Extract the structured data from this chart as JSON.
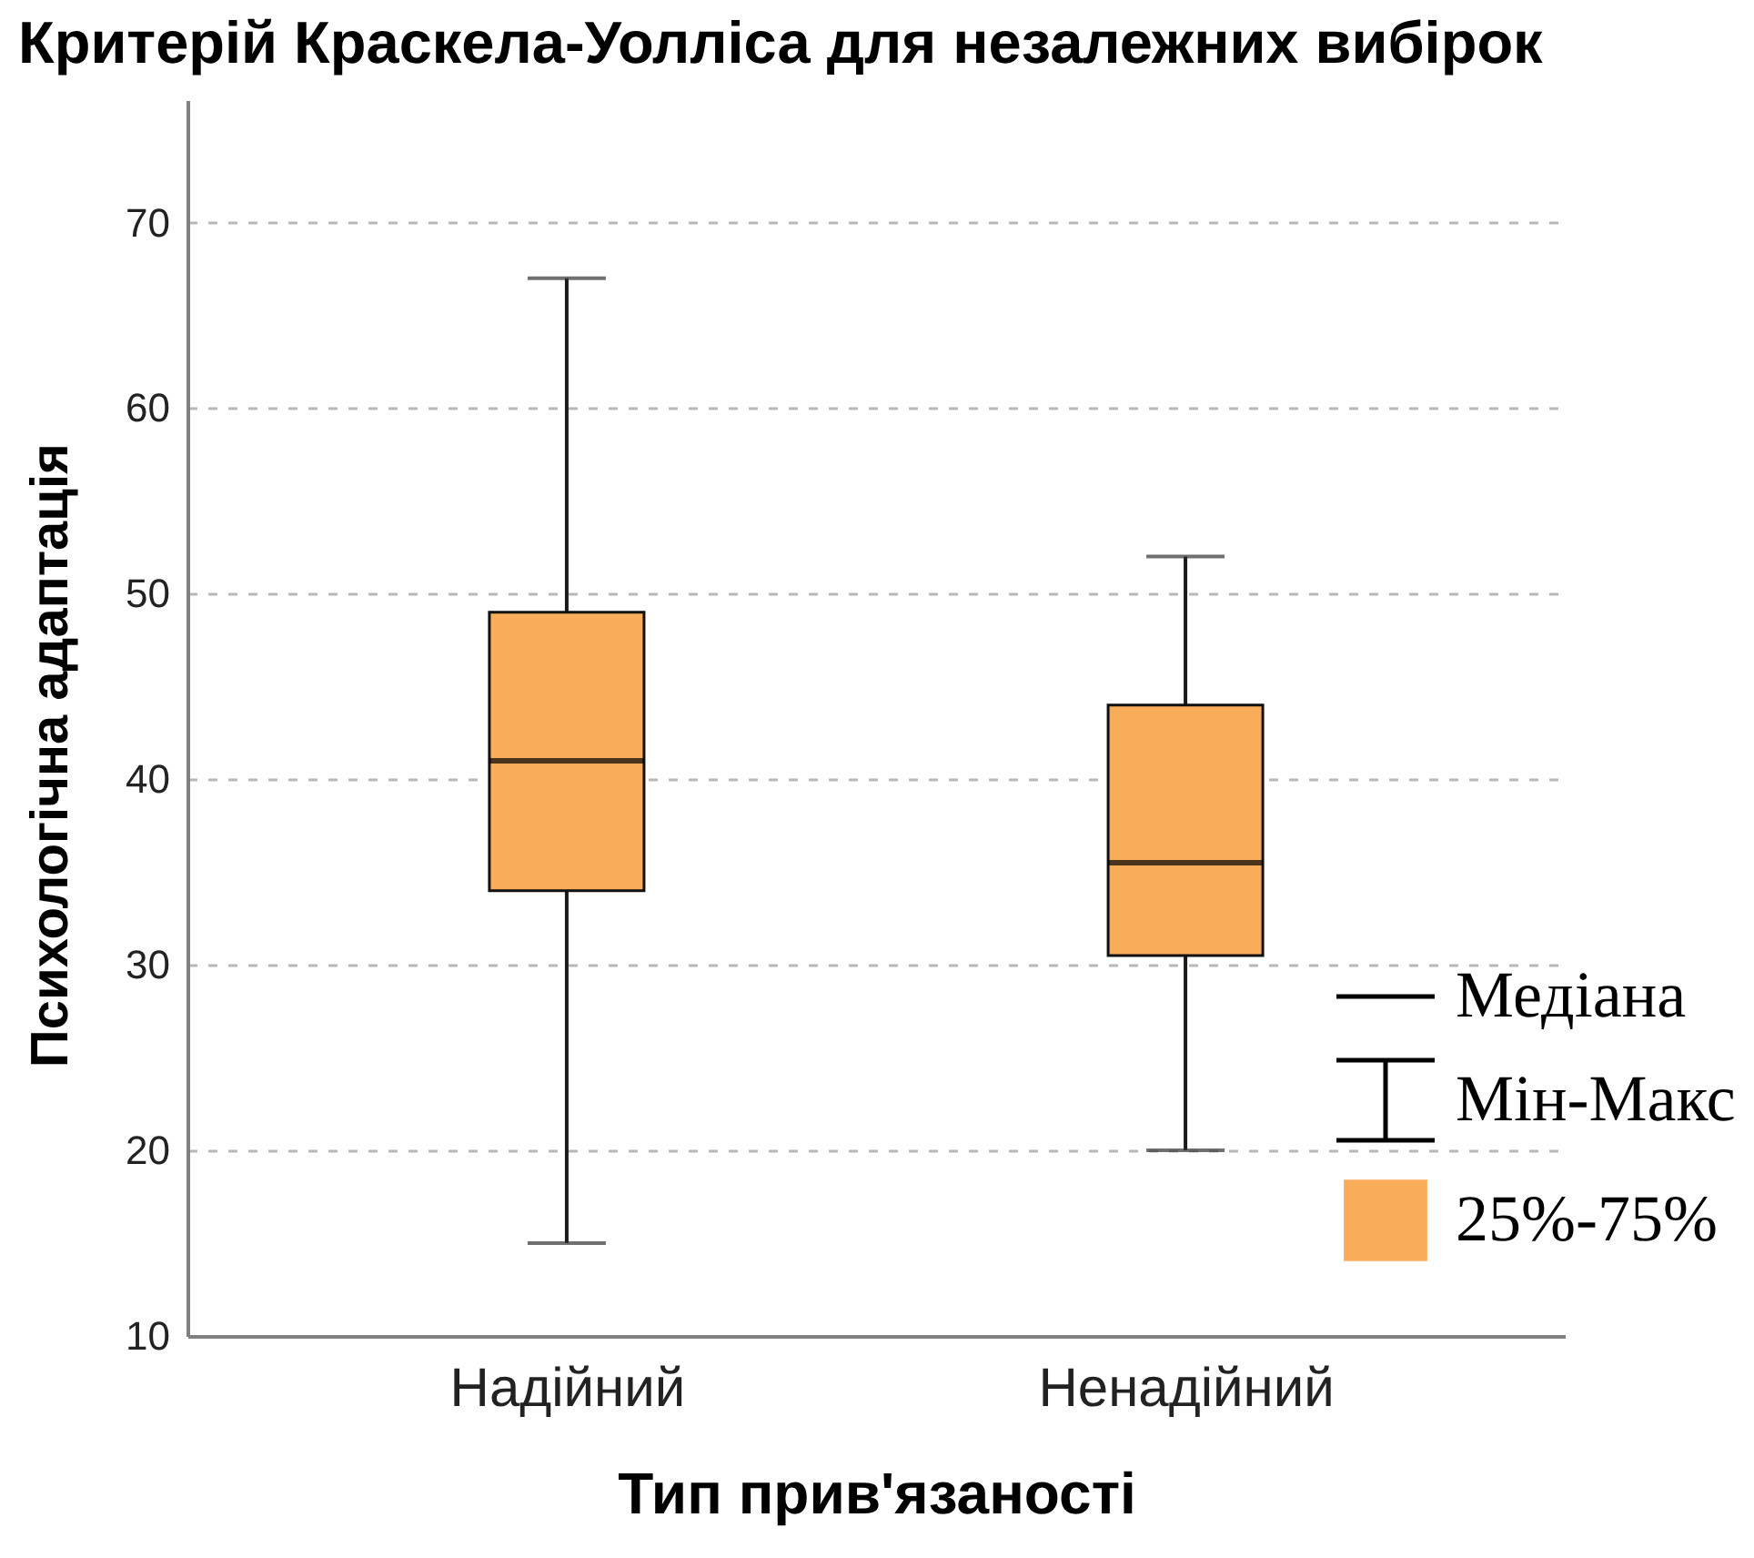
{
  "chart_data": {
    "type": "box",
    "title": "Критерій Краскела-Уолліса для незалежних вибірок",
    "xlabel": "Тип прив'язаності",
    "ylabel": "Психологічна адаптація",
    "categories": [
      "Надійний",
      "Ненадійний"
    ],
    "series": [
      {
        "name": "25%-75%",
        "color": "#f9ad5b",
        "boxes": [
          {
            "low": 15,
            "q1": 34,
            "median": 41,
            "q3": 49,
            "high": 67
          },
          {
            "low": 20,
            "q1": 30.5,
            "median": 35.5,
            "q3": 44,
            "high": 52
          }
        ]
      }
    ],
    "ylim": [
      10,
      76.6
    ],
    "yticks": [
      10,
      20,
      30,
      40,
      50,
      60,
      70
    ],
    "grid": "y",
    "legend": "bottom right",
    "annotations": [
      "Медіана",
      "Мін-Макс"
    ]
  }
}
